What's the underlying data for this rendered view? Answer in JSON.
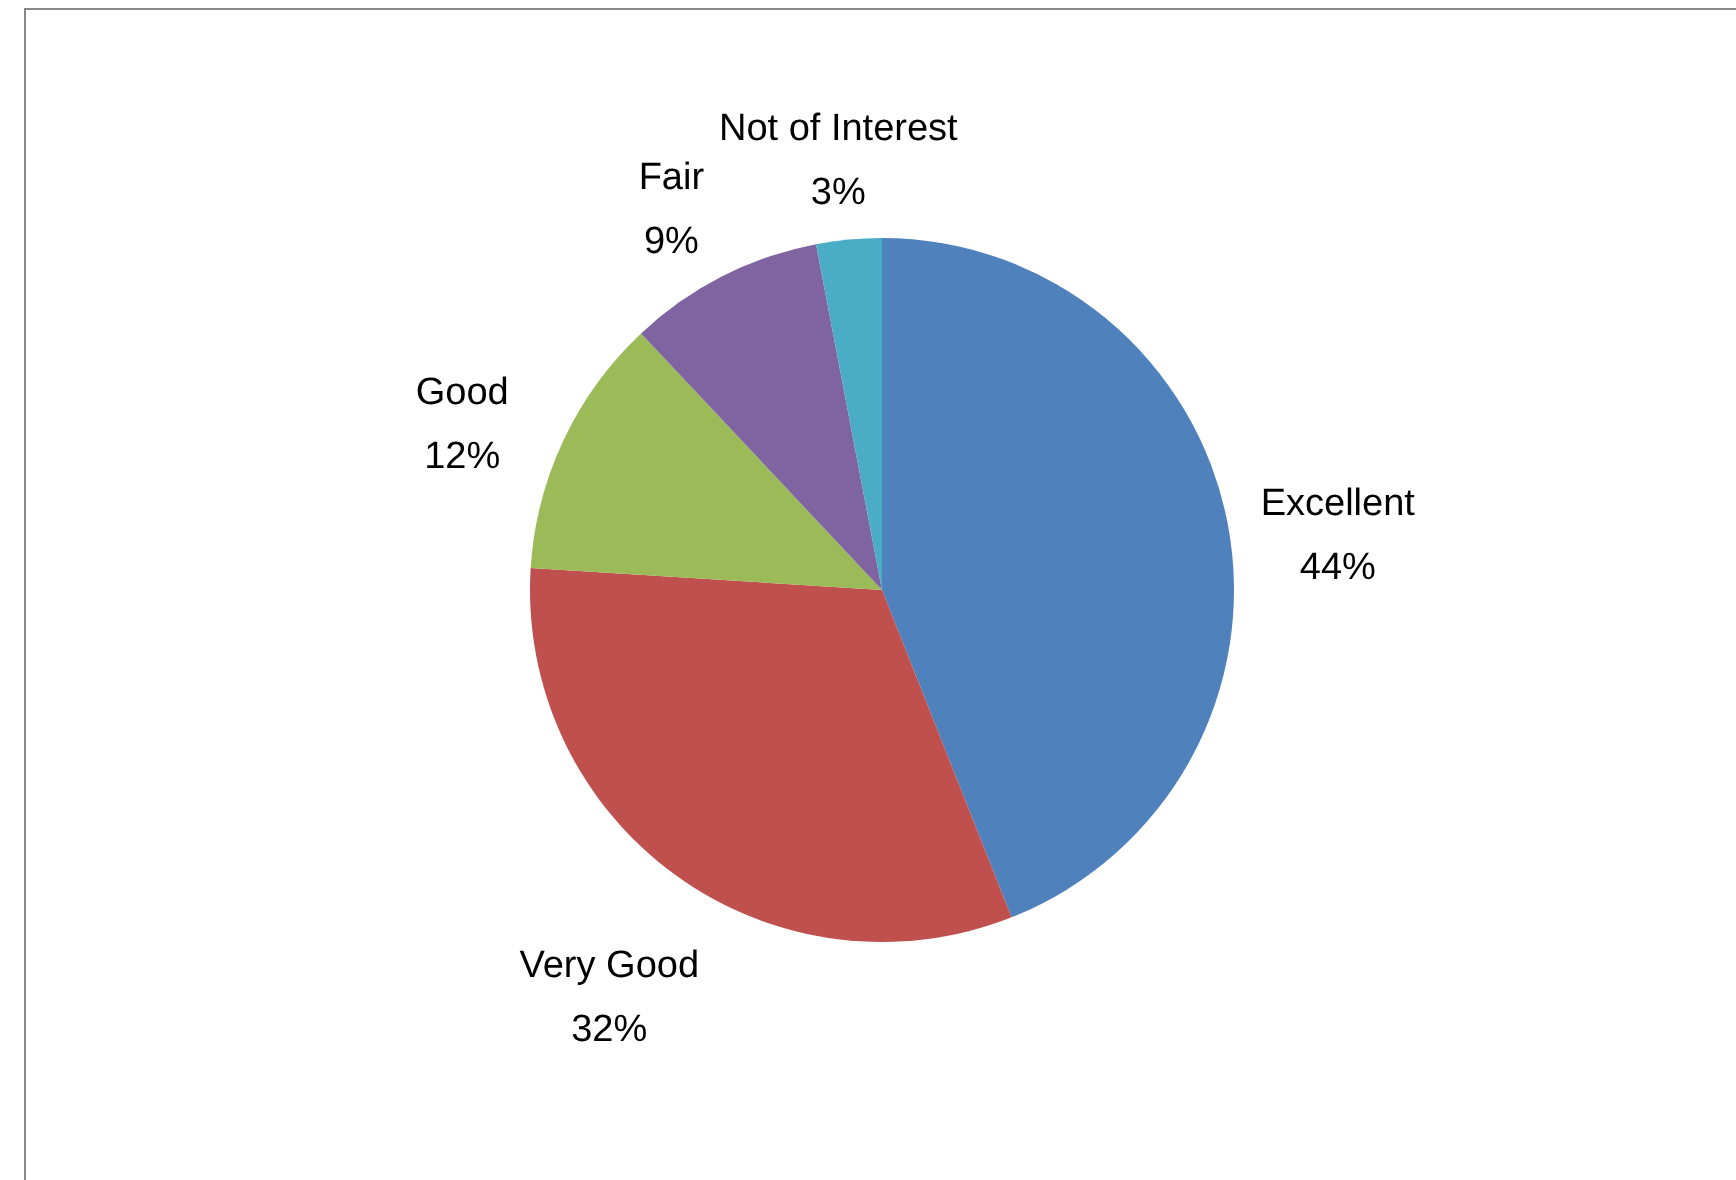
{
  "chart_data": {
    "type": "pie",
    "categories": [
      "Excellent",
      "Very Good",
      "Good",
      "Fair",
      "Not of Interest"
    ],
    "values": [
      44,
      32,
      12,
      9,
      3
    ],
    "colors": [
      "#4f81bd",
      "#c0504d",
      "#9bbb59",
      "#8064a2",
      "#4bacc6"
    ],
    "value_labels": [
      "44%",
      "32%",
      "12%",
      "9%",
      "3%"
    ]
  }
}
